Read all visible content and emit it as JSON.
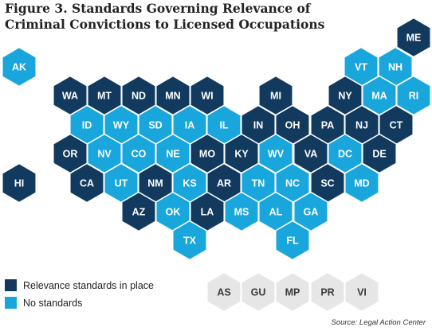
{
  "title": {
    "line1": "Figure 3. Standards Governing Relevance of",
    "line2": "Criminal Convictions to Licensed Occupations"
  },
  "colors": {
    "in_place": "#123a5e",
    "none": "#19a6dd",
    "territory": "#e6e6e6",
    "territory_text": "#3a3a3a"
  },
  "legend": {
    "in_place": "Relevance standards in place",
    "none": "No standards"
  },
  "source": "Source: Legal Action Center",
  "states": [
    {
      "code": "ME",
      "status": "in_place"
    },
    {
      "code": "AK",
      "status": "none"
    },
    {
      "code": "VT",
      "status": "none"
    },
    {
      "code": "NH",
      "status": "none"
    },
    {
      "code": "WA",
      "status": "in_place"
    },
    {
      "code": "MT",
      "status": "in_place"
    },
    {
      "code": "ND",
      "status": "in_place"
    },
    {
      "code": "MN",
      "status": "in_place"
    },
    {
      "code": "WI",
      "status": "in_place"
    },
    {
      "code": "MI",
      "status": "in_place"
    },
    {
      "code": "NY",
      "status": "in_place"
    },
    {
      "code": "MA",
      "status": "none"
    },
    {
      "code": "RI",
      "status": "none"
    },
    {
      "code": "ID",
      "status": "none"
    },
    {
      "code": "WY",
      "status": "none"
    },
    {
      "code": "SD",
      "status": "none"
    },
    {
      "code": "IA",
      "status": "none"
    },
    {
      "code": "IL",
      "status": "none"
    },
    {
      "code": "IN",
      "status": "in_place"
    },
    {
      "code": "OH",
      "status": "in_place"
    },
    {
      "code": "PA",
      "status": "in_place"
    },
    {
      "code": "NJ",
      "status": "in_place"
    },
    {
      "code": "CT",
      "status": "in_place"
    },
    {
      "code": "OR",
      "status": "in_place"
    },
    {
      "code": "NV",
      "status": "none"
    },
    {
      "code": "CO",
      "status": "none"
    },
    {
      "code": "NE",
      "status": "none"
    },
    {
      "code": "MO",
      "status": "in_place"
    },
    {
      "code": "KY",
      "status": "in_place"
    },
    {
      "code": "WV",
      "status": "none"
    },
    {
      "code": "VA",
      "status": "in_place"
    },
    {
      "code": "DC",
      "status": "none"
    },
    {
      "code": "DE",
      "status": "in_place"
    },
    {
      "code": "HI",
      "status": "in_place"
    },
    {
      "code": "CA",
      "status": "in_place"
    },
    {
      "code": "UT",
      "status": "none"
    },
    {
      "code": "NM",
      "status": "in_place"
    },
    {
      "code": "KS",
      "status": "none"
    },
    {
      "code": "AR",
      "status": "in_place"
    },
    {
      "code": "TN",
      "status": "none"
    },
    {
      "code": "NC",
      "status": "none"
    },
    {
      "code": "SC",
      "status": "in_place"
    },
    {
      "code": "MD",
      "status": "none"
    },
    {
      "code": "AZ",
      "status": "in_place"
    },
    {
      "code": "OK",
      "status": "none"
    },
    {
      "code": "LA",
      "status": "in_place"
    },
    {
      "code": "MS",
      "status": "none"
    },
    {
      "code": "AL",
      "status": "none"
    },
    {
      "code": "GA",
      "status": "none"
    },
    {
      "code": "TX",
      "status": "none"
    },
    {
      "code": "FL",
      "status": "none"
    }
  ],
  "territories": [
    "AS",
    "GU",
    "MP",
    "PR",
    "VI"
  ]
}
